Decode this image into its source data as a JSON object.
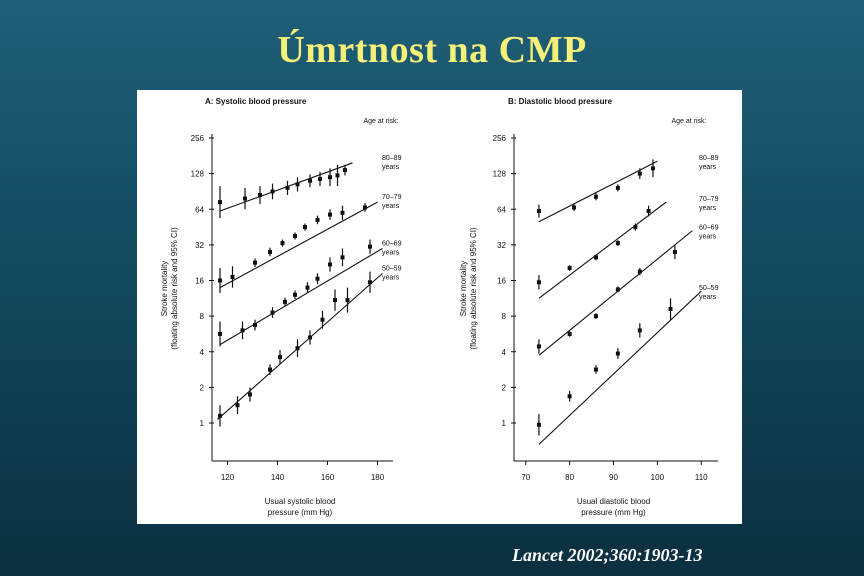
{
  "slide": {
    "title": "Úmrtnost na CMP",
    "citation": "Lancet 2002;360:1903-13"
  },
  "colors": {
    "title": "#f5f07a",
    "background": "#134a5e",
    "ink": "#111111"
  },
  "chart_data": [
    {
      "type": "scatter",
      "title": "A: Systolic blood pressure",
      "xlabel": [
        "Usual systolic blood",
        "pressure (mm Hg)"
      ],
      "ylabel": [
        "Stroke mortality",
        "(floating absolute risk and 95% CI)"
      ],
      "xlim": [
        115,
        183
      ],
      "xticks": [
        120,
        140,
        160,
        180
      ],
      "ylim_log2": [
        0,
        8
      ],
      "yticks": [
        "1",
        "2",
        "4",
        "8",
        "16",
        "32",
        "64",
        "128",
        "256"
      ],
      "legend_title": "Age at risk:",
      "series": [
        {
          "name": "80–89 years",
          "label_top": "80–89",
          "label_bottom": "years",
          "x": [
            117,
            127,
            133,
            138,
            144,
            148,
            153,
            157,
            161,
            164,
            167
          ],
          "y": [
            6.2,
            6.3,
            6.4,
            6.5,
            6.6,
            6.7,
            6.8,
            6.85,
            6.9,
            6.95,
            7.1
          ],
          "err": [
            0.45,
            0.3,
            0.25,
            0.22,
            0.2,
            0.2,
            0.18,
            0.2,
            0.25,
            0.3,
            0.15
          ],
          "fit": [
            [
              117,
              5.95
            ],
            [
              170,
              7.3
            ]
          ]
        },
        {
          "name": "70–79 years",
          "label_top": "70–79",
          "label_bottom": "years",
          "x": [
            117,
            122,
            131,
            137,
            142,
            147,
            151,
            156,
            161,
            166,
            175
          ],
          "y": [
            4,
            4.1,
            4.5,
            4.8,
            5.05,
            5.25,
            5.5,
            5.7,
            5.85,
            5.9,
            6.05
          ],
          "err": [
            0.35,
            0.3,
            0.12,
            0.12,
            0.1,
            0.1,
            0.1,
            0.12,
            0.15,
            0.2,
            0.12
          ],
          "fit": [
            [
              117,
              3.8
            ],
            [
              180,
              6.2
            ]
          ]
        },
        {
          "name": "60–69 years",
          "label_top": "60–69",
          "label_bottom": "years",
          "x": [
            117,
            126,
            131,
            138,
            143,
            147,
            152,
            156,
            161,
            166,
            177
          ],
          "y": [
            2.5,
            2.6,
            2.75,
            3.1,
            3.4,
            3.6,
            3.8,
            4.05,
            4.45,
            4.65,
            4.95
          ],
          "err": [
            0.35,
            0.25,
            0.15,
            0.15,
            0.12,
            0.12,
            0.15,
            0.15,
            0.2,
            0.25,
            0.2
          ],
          "fit": [
            [
              117,
              2.2
            ],
            [
              182,
              4.9
            ]
          ]
        },
        {
          "name": "50–59 years",
          "label_top": "50–59",
          "label_bottom": "years",
          "x": [
            117,
            124,
            129,
            137,
            141,
            148,
            153,
            158,
            163,
            168,
            177
          ],
          "y": [
            0.2,
            0.5,
            0.8,
            1.5,
            1.85,
            2.1,
            2.4,
            2.9,
            3.45,
            3.45,
            3.95
          ],
          "err": [
            0.3,
            0.25,
            0.2,
            0.15,
            0.2,
            0.25,
            0.2,
            0.25,
            0.3,
            0.35,
            0.3
          ],
          "fit": [
            [
              116,
              0.1
            ],
            [
              182,
              4.2
            ]
          ]
        }
      ]
    },
    {
      "type": "scatter",
      "title": "B: Diastolic blood pressure",
      "xlabel": [
        "Usual diastolic blood",
        "pressure (mm Hg)"
      ],
      "ylabel": [
        "Stroke mortality",
        "(floating absolute risk and 95% CI)"
      ],
      "xlim": [
        68,
        112
      ],
      "xticks": [
        70,
        80,
        90,
        100,
        110
      ],
      "ylim_log2": [
        0,
        8
      ],
      "yticks": [
        "1",
        "2",
        "4",
        "8",
        "16",
        "32",
        "64",
        "128",
        "256"
      ],
      "legend_title": "Age at risk:",
      "series": [
        {
          "name": "80–89 years",
          "label_top": "80–89",
          "label_bottom": "years",
          "x": [
            73,
            81,
            86,
            91,
            96,
            99
          ],
          "y": [
            5.95,
            6.05,
            6.35,
            6.6,
            7,
            7.15
          ],
          "err": [
            0.18,
            0.1,
            0.1,
            0.1,
            0.15,
            0.25
          ],
          "fit": [
            [
              73,
              5.65
            ],
            [
              100,
              7.35
            ]
          ]
        },
        {
          "name": "70–79 years",
          "label_top": "70–79",
          "label_bottom": "years",
          "x": [
            73,
            80,
            86,
            91,
            95,
            98
          ],
          "y": [
            3.95,
            4.35,
            4.65,
            5.05,
            5.5,
            5.95
          ],
          "err": [
            0.2,
            0.08,
            0.08,
            0.08,
            0.1,
            0.15
          ],
          "fit": [
            [
              73,
              3.5
            ],
            [
              102,
              6.2
            ]
          ]
        },
        {
          "name": "60–69 years",
          "label_top": "60–69",
          "label_bottom": "years",
          "x": [
            73,
            80,
            86,
            91,
            96,
            104
          ],
          "y": [
            2.15,
            2.5,
            3,
            3.75,
            4.25,
            4.8
          ],
          "err": [
            0.2,
            0.08,
            0.08,
            0.08,
            0.1,
            0.2
          ],
          "fit": [
            [
              73,
              1.9
            ],
            [
              108,
              5.4
            ]
          ]
        },
        {
          "name": "50–59 years",
          "label_top": "50–59",
          "label_bottom": "years",
          "x": [
            73,
            80,
            86,
            91,
            96,
            103
          ],
          "y": [
            -0.05,
            0.75,
            1.5,
            1.95,
            2.6,
            3.2
          ],
          "err": [
            0.3,
            0.15,
            0.12,
            0.15,
            0.2,
            0.3
          ],
          "fit": [
            [
              73,
              -0.6
            ],
            [
              110,
              3.7
            ]
          ]
        }
      ]
    }
  ]
}
